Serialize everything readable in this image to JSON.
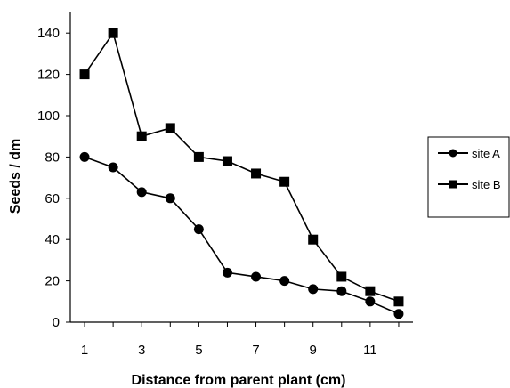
{
  "chart_data": {
    "type": "line",
    "title": "",
    "xlabel": "Distance from parent plant (cm)",
    "ylabel": "Seeds / dm",
    "x": [
      1,
      2,
      3,
      4,
      5,
      6,
      7,
      8,
      9,
      10,
      11,
      12
    ],
    "xticks": [
      "1",
      "3",
      "5",
      "7",
      "9",
      "11"
    ],
    "xlim": [
      0.5,
      12.5
    ],
    "yticks": [
      "0",
      "20",
      "40",
      "60",
      "80",
      "100",
      "120",
      "140"
    ],
    "ylim": [
      0,
      150
    ],
    "grid": false,
    "legend_position": "right",
    "series": [
      {
        "name": "site A",
        "marker": "circle",
        "values": [
          80,
          75,
          63,
          60,
          45,
          24,
          22,
          20,
          16,
          15,
          10,
          4
        ]
      },
      {
        "name": "site B",
        "marker": "square",
        "values": [
          120,
          140,
          90,
          94,
          80,
          78,
          72,
          68,
          40,
          22,
          15,
          10
        ]
      }
    ],
    "line_color": "#000000"
  }
}
